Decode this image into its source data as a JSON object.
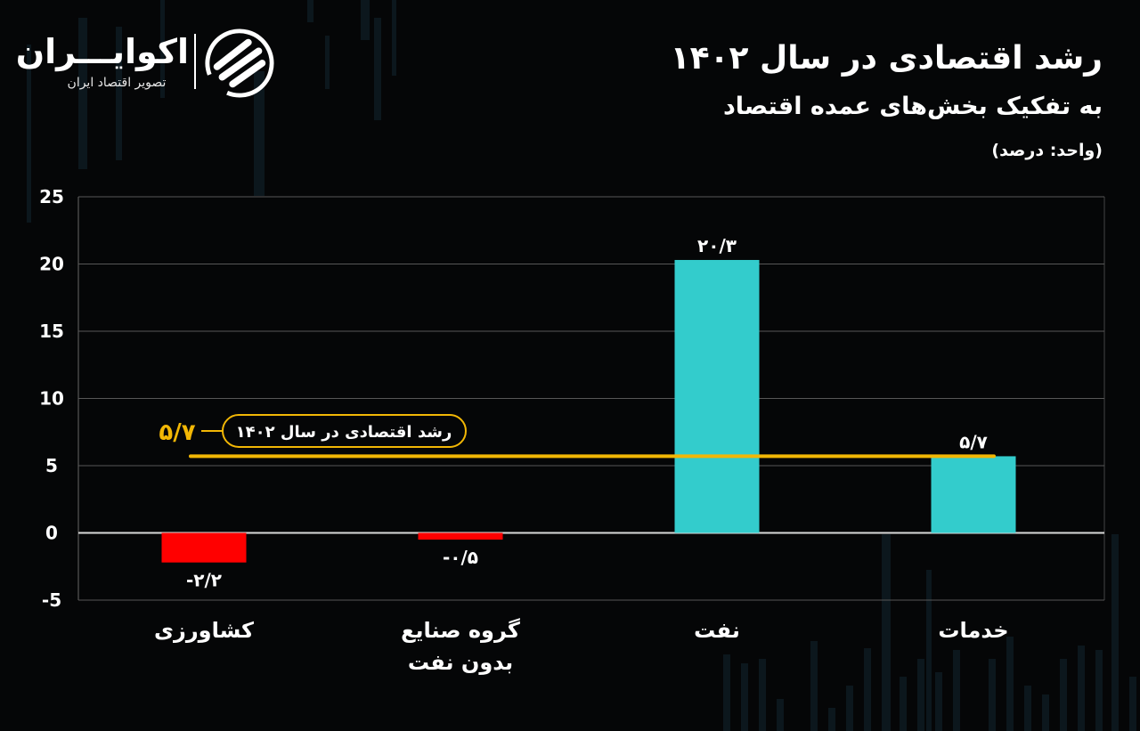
{
  "logo": {
    "name": "اکوایـــران",
    "tagline": "تصویر اقتصاد ایران"
  },
  "header": {
    "title": "رشد اقتصادی در سال ۱۴۰۲",
    "subtitle": "به تفکیک بخش‌های عمده اقتصاد",
    "unit": "(واحد: درصد)"
  },
  "colors": {
    "positive": "#33CCCC",
    "negative": "#FF0000",
    "reference": "#F2B705",
    "grid": "#5a5a5a",
    "background": "#050607"
  },
  "chart_data": {
    "type": "bar",
    "title": "رشد اقتصادی در سال ۱۴۰۲",
    "subtitle": "به تفکیک بخش‌های عمده اقتصاد",
    "ylabel": "(واحد: درصد)",
    "ylim": [
      -5,
      25
    ],
    "yticks": [
      25,
      20,
      15,
      10,
      5,
      0,
      -5
    ],
    "ytick_labels": [
      "25",
      "20",
      "15",
      "10",
      "5",
      "0",
      "-5"
    ],
    "grid": true,
    "categories": [
      {
        "lines": [
          "کشاورزی"
        ]
      },
      {
        "lines": [
          "گروه صنایع",
          "بدون نفت"
        ]
      },
      {
        "lines": [
          "نفت"
        ]
      },
      {
        "lines": [
          "خدمات"
        ]
      }
    ],
    "values": [
      -2.2,
      -0.5,
      20.3,
      5.7
    ],
    "value_labels": [
      "-۲/۲",
      "-۰/۵",
      "۲۰/۳",
      "۵/۷"
    ],
    "reference_line": {
      "value": 5.7,
      "value_label": "۵/۷",
      "label": "رشد اقتصادی در سال ۱۴۰۲"
    }
  }
}
